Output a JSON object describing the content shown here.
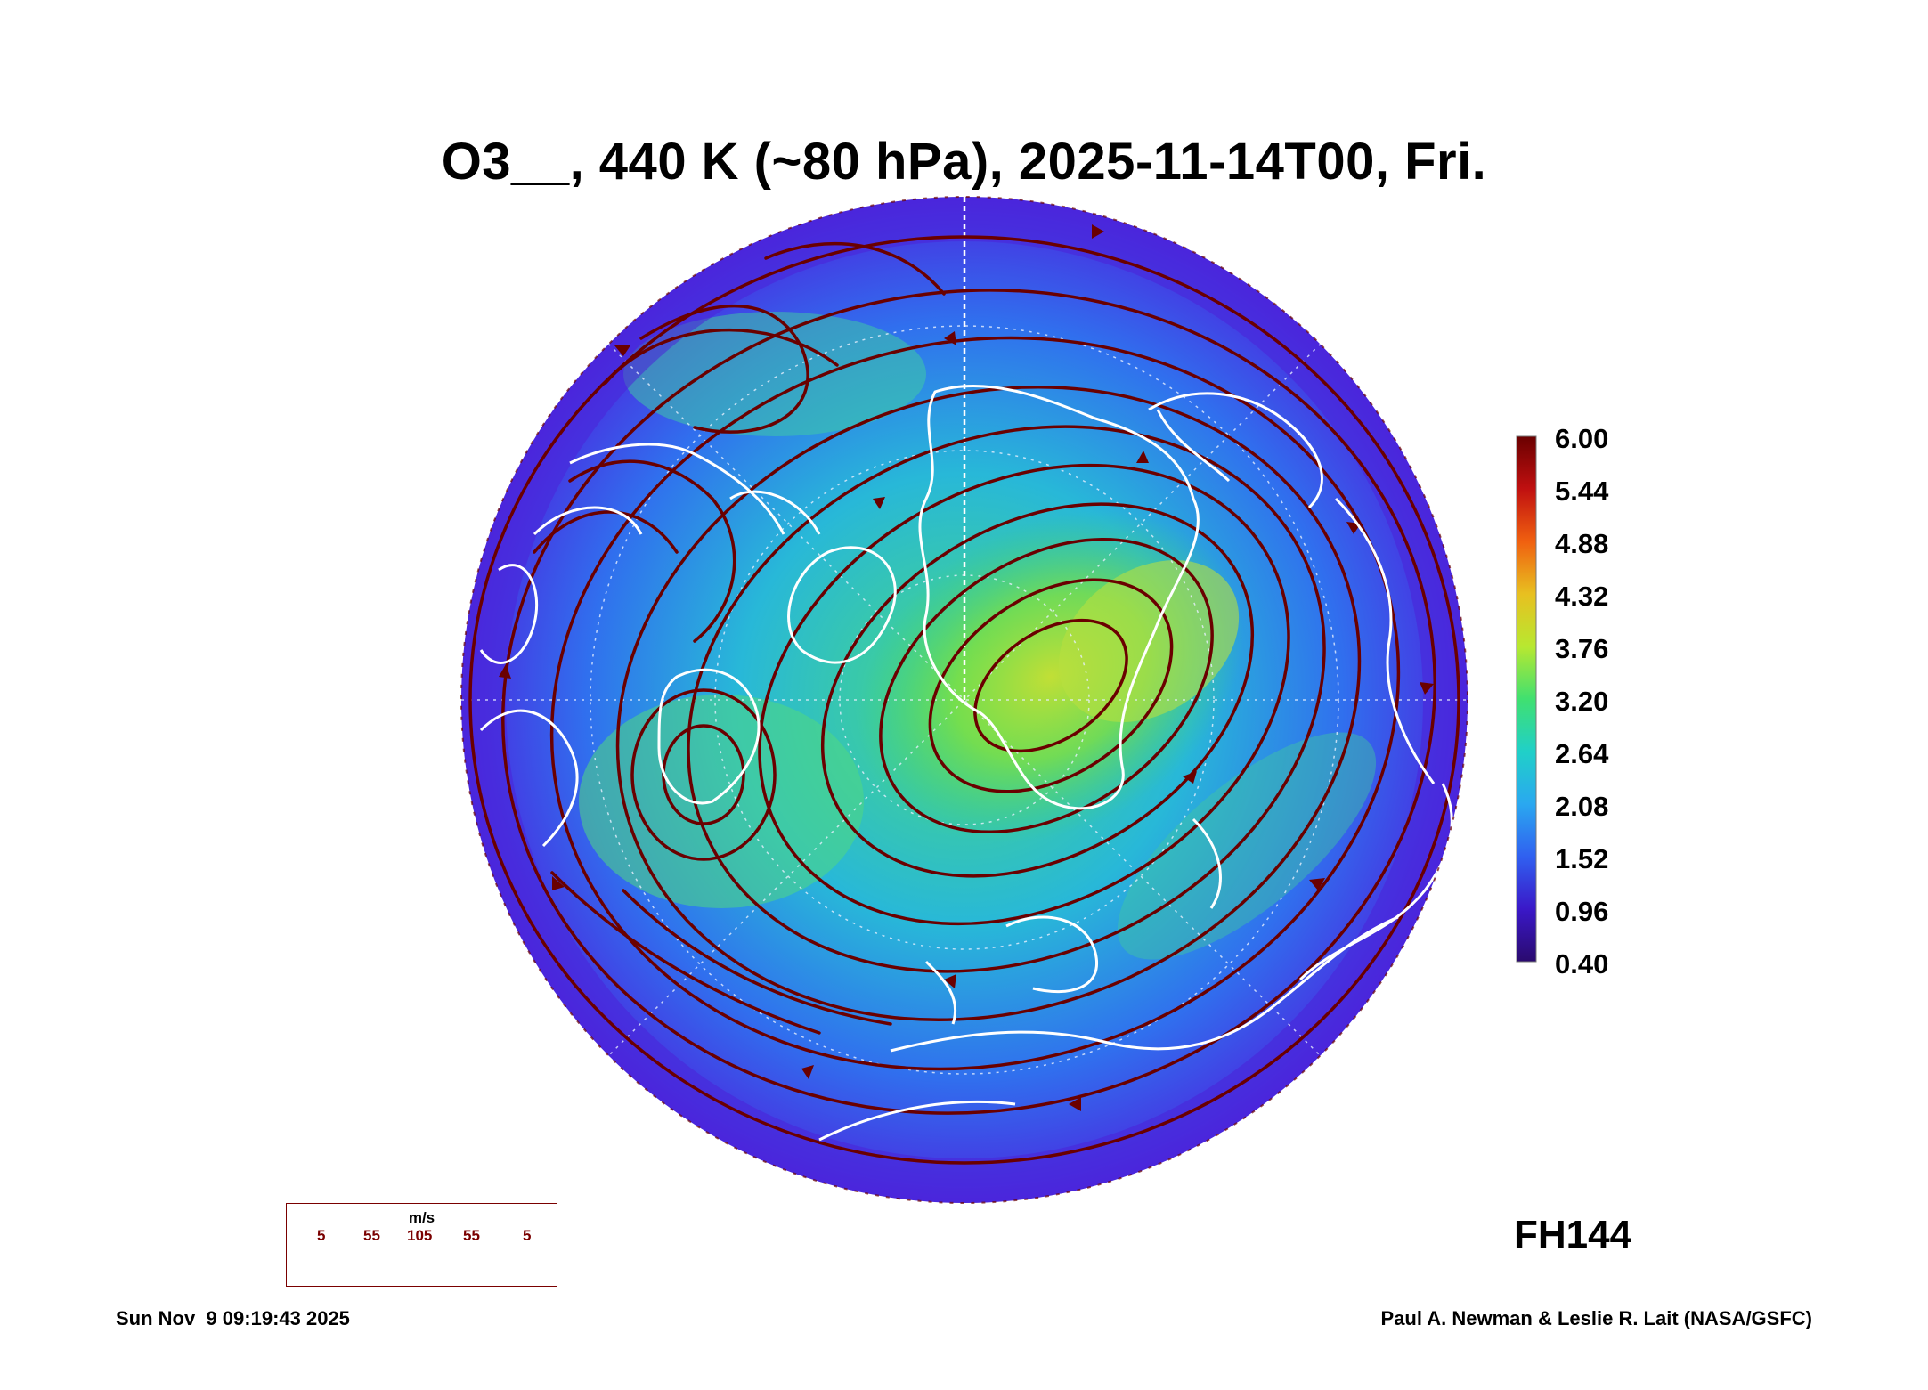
{
  "title": "O3__, 440 K (~80 hPa), 2025-11-14T00, Fri.",
  "colorbar": {
    "labels": [
      "6.00",
      "5.44",
      "4.88",
      "4.32",
      "3.76",
      "3.20",
      "2.64",
      "2.08",
      "1.52",
      "0.96",
      "0.40"
    ],
    "min": 0.4,
    "max": 6.0,
    "colors": [
      "#2a0a6e",
      "#3a18c8",
      "#3060f0",
      "#2aa8f0",
      "#20d0c8",
      "#40e070",
      "#b8e830",
      "#e8c020",
      "#f06010",
      "#c01010",
      "#6a0000"
    ]
  },
  "map": {
    "projection": "north-polar-stereographic",
    "field": "ozone mixing ratio",
    "streamline_color": "#6a0000",
    "coastline_color": "#ffffff"
  },
  "wind_legend": {
    "unit": "m/s",
    "speeds": [
      "5",
      "55",
      "105",
      "55",
      "5"
    ]
  },
  "forecast_hour": "FH144",
  "footer": {
    "timestamp": "Sun Nov  9 09:19:43 2025",
    "credit": "Paul A. Newman & Leslie R. Lait (NASA/GSFC)"
  }
}
